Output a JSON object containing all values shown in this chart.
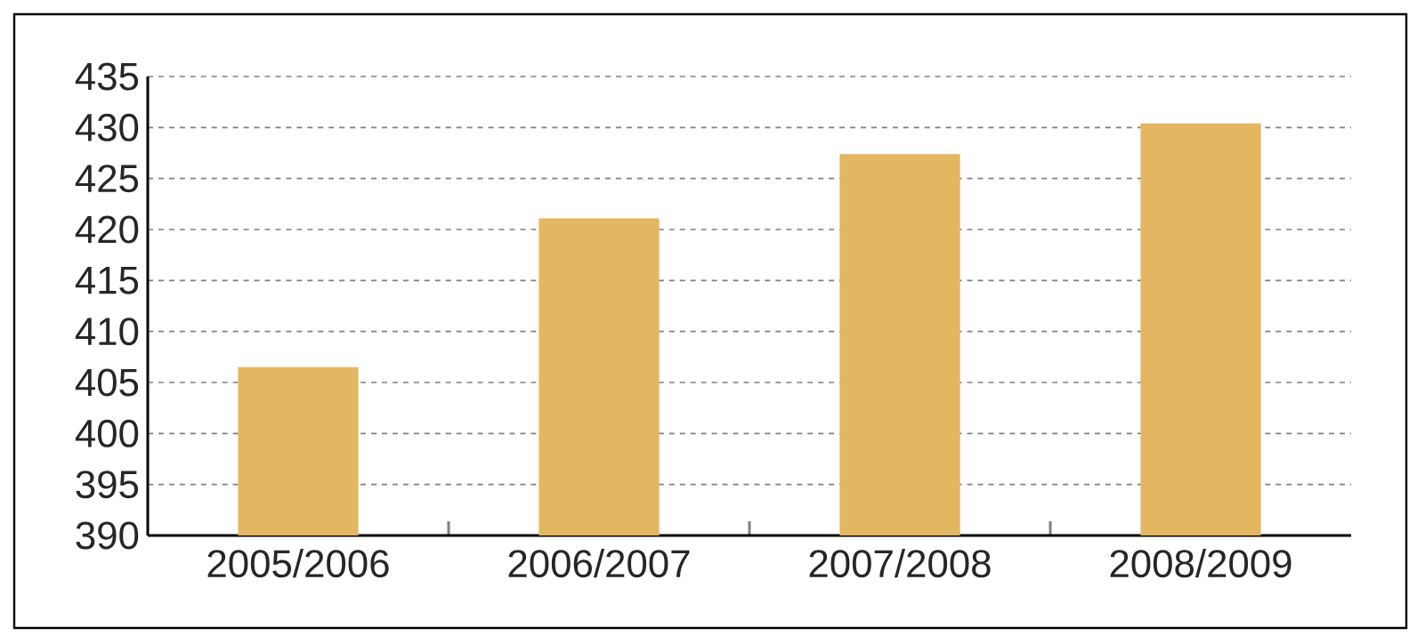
{
  "chart_data": {
    "type": "bar",
    "categories": [
      "2005/2006",
      "2006/2007",
      "2007/2008",
      "2008/2009"
    ],
    "values": [
      406.5,
      421.1,
      427.4,
      430.4
    ],
    "color": "#e3b662",
    "ylim": [
      390,
      435
    ],
    "yticks": [
      390,
      395,
      400,
      405,
      410,
      415,
      420,
      425,
      430,
      435
    ],
    "grid": "y"
  }
}
